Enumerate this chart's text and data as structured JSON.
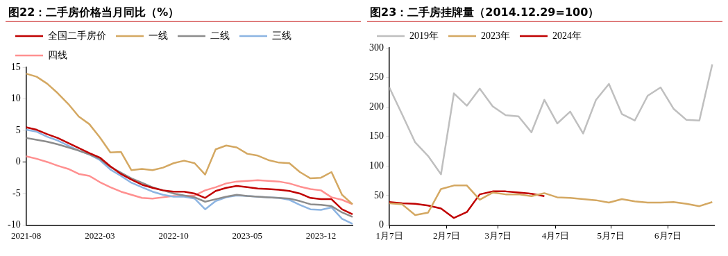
{
  "chart_data": [
    {
      "type": "line",
      "title": "图22：二手房价格当月同比（%）",
      "categories": [
        "2021-08",
        null,
        null,
        null,
        null,
        null,
        null,
        "2022-03",
        null,
        null,
        null,
        null,
        null,
        null,
        "2022-10",
        null,
        null,
        null,
        null,
        null,
        null,
        "2023-05",
        null,
        null,
        null,
        null,
        null,
        null,
        "2023-12",
        null,
        null,
        null
      ],
      "series": [
        {
          "name": "全国二手房价",
          "color": "#c00000",
          "values": [
            5.5,
            5.1,
            4.4,
            3.8,
            3.0,
            2.2,
            1.4,
            0.7,
            -0.7,
            -1.9,
            -2.8,
            -3.6,
            -4.1,
            -4.5,
            -4.7,
            -4.7,
            -5.0,
            -5.7,
            -4.6,
            -4.1,
            -3.8,
            -4.0,
            -4.2,
            -4.3,
            -4.4,
            -4.6,
            -5.0,
            -5.7,
            -5.9,
            -5.9,
            -7.5,
            -8.3
          ]
        },
        {
          "name": "一线",
          "color": "#d4a862",
          "values": [
            14.0,
            13.5,
            12.4,
            10.9,
            9.2,
            7.2,
            6.0,
            3.9,
            1.5,
            1.6,
            -1.3,
            -1.1,
            -1.3,
            -0.9,
            -0.2,
            0.2,
            -0.2,
            -2.0,
            2.0,
            2.6,
            2.3,
            1.3,
            1.0,
            0.3,
            -0.1,
            -0.2,
            -1.6,
            -2.6,
            -2.5,
            -1.6,
            -5.2,
            -6.7
          ]
        },
        {
          "name": "二线",
          "color": "#8c8c8c",
          "values": [
            3.8,
            3.5,
            3.2,
            2.8,
            2.3,
            1.8,
            1.2,
            0.5,
            -0.8,
            -1.7,
            -2.6,
            -3.3,
            -4.0,
            -4.5,
            -5.0,
            -5.3,
            -5.6,
            -6.3,
            -5.9,
            -5.5,
            -5.2,
            -5.4,
            -5.5,
            -5.6,
            -5.7,
            -5.8,
            -6.2,
            -6.7,
            -6.8,
            -7.0,
            -8.0,
            -8.7
          ]
        },
        {
          "name": "三线",
          "color": "#8cb4e2",
          "values": [
            5.1,
            4.8,
            4.0,
            3.4,
            2.6,
            1.8,
            1.2,
            0.3,
            -1.2,
            -2.2,
            -3.3,
            -4.0,
            -4.7,
            -5.2,
            -5.5,
            -5.5,
            -5.8,
            -7.5,
            -6.2,
            -5.6,
            -5.3,
            -5.4,
            -5.5,
            -5.6,
            -5.7,
            -6.0,
            -6.8,
            -7.5,
            -7.6,
            -7.2,
            -9.0,
            -9.8
          ]
        },
        {
          "name": "四线",
          "color": "#ff9090",
          "values": [
            0.9,
            0.5,
            0.0,
            -0.6,
            -1.1,
            -1.9,
            -2.2,
            -3.2,
            -4.0,
            -4.7,
            -5.2,
            -5.7,
            -5.8,
            -5.6,
            -5.4,
            -5.4,
            -5.3,
            -4.5,
            -4.0,
            -3.4,
            -3.1,
            -3.0,
            -2.9,
            -3.0,
            -3.1,
            -3.4,
            -3.9,
            -4.3,
            -4.5,
            -5.6,
            -6.0,
            -6.7
          ]
        }
      ],
      "ylim": [
        -10,
        15
      ],
      "yticks": [
        -10,
        -5,
        0,
        5,
        10,
        15
      ],
      "legend": "top",
      "marker": "none"
    },
    {
      "type": "line",
      "title": "图23：二手房挂牌量（2014.12.29=100）",
      "x": [
        "--01-07",
        "--01-14",
        "--01-21",
        "--01-28",
        "--02-04",
        "--02-11",
        "--02-18",
        "--02-25",
        "--03-04",
        "--03-11",
        "--03-18",
        "--03-25",
        "--04-01",
        "--04-08",
        "--04-15",
        "--04-22",
        "--04-29",
        "--05-06",
        "--05-13",
        "--05-20",
        "--05-27",
        "--06-03",
        "--06-10",
        "--06-17",
        "--06-24",
        "--07-01"
      ],
      "series": [
        {
          "name": "2019年",
          "color": "#bfbfbf",
          "values": [
            233,
            187,
            140,
            117,
            86,
            223,
            202,
            231,
            201,
            186,
            184,
            157,
            212,
            172,
            192,
            155,
            212,
            239,
            188,
            177,
            219,
            233,
            197,
            178,
            177,
            272
          ]
        },
        {
          "name": "2023年",
          "color": "#d4a862",
          "values": [
            37,
            35,
            17,
            21,
            61,
            67,
            67,
            43,
            55,
            52,
            52,
            49,
            54,
            47,
            46,
            44,
            42,
            38,
            44,
            40,
            38,
            38,
            39,
            36,
            32,
            39
          ]
        },
        {
          "name": "2024年",
          "color": "#c00000",
          "x": [
            "--01-07",
            "--01-14",
            "--01-21",
            "--01-28",
            "--02-04",
            "--02-11",
            "--02-18",
            "--02-25",
            "--03-04",
            "--03-11",
            "--03-18",
            "--03-25",
            "--04-01"
          ],
          "values": [
            39,
            37,
            36,
            33,
            28,
            12,
            22,
            52,
            57,
            57,
            55,
            53,
            49
          ]
        }
      ],
      "xlim": [
        "--01-07",
        "--07-02"
      ],
      "xticks": [
        {
          "value": "--01-07",
          "label": "1月7日"
        },
        {
          "value": "--02-07",
          "label": "2月7日"
        },
        {
          "value": "--03-07",
          "label": "3月7日"
        },
        {
          "value": "--04-07",
          "label": "4月7日"
        },
        {
          "value": "--05-07",
          "label": "5月7日"
        },
        {
          "value": "--06-07",
          "label": "6月7日"
        }
      ],
      "ylim": [
        0,
        300
      ],
      "yticks": [
        0,
        50,
        100,
        150,
        200,
        250,
        300
      ],
      "legend": "top",
      "marker": "none"
    }
  ]
}
